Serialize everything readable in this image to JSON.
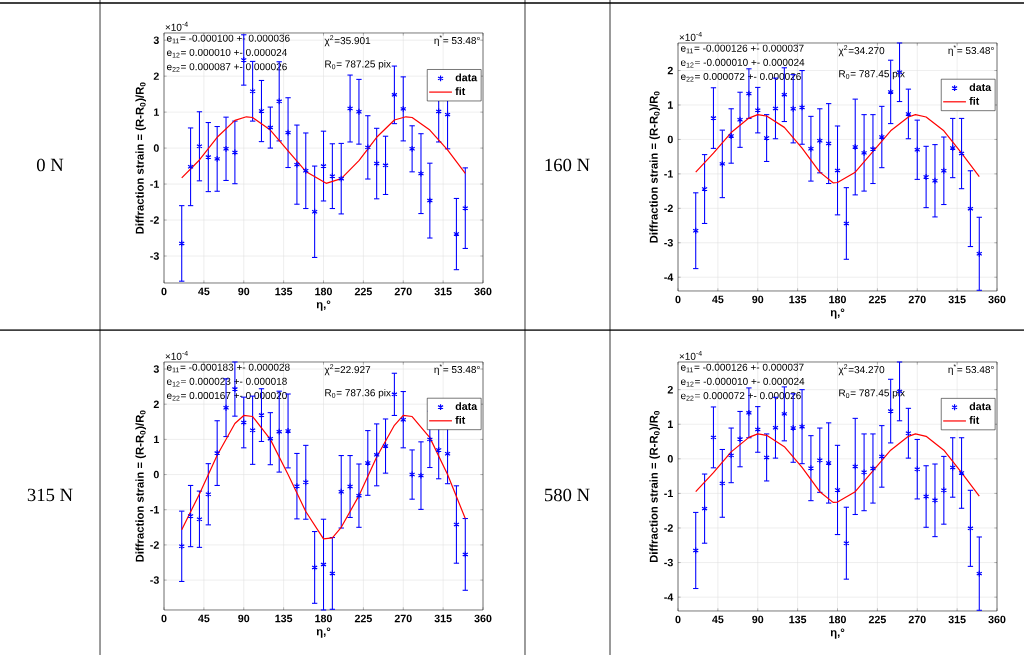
{
  "chart_data": [
    {
      "type": "scatter",
      "title": "0 N",
      "xlabel": "η,°",
      "ylabel": "Diffraction strain = (R-R$_{0}$)/R$_{0}$",
      "annotations": [
        "×10$^{-4}$",
        "e$_{11}$= -0.000100 +- 0.000036",
        "e$_{12}$= 0.000010 +- 0.000024",
        "e$_{22}$= 0.000087 +- 0.000026",
        "χ$^{2}$=35.901",
        "R$_{0}$= 787.25 pix",
        "η$^{*}$= 53.48°"
      ],
      "x": [
        20,
        30,
        40,
        50,
        60,
        70,
        80,
        90,
        100,
        110,
        120,
        130,
        140,
        150,
        160,
        170,
        180,
        190,
        200,
        210,
        220,
        230,
        240,
        250,
        260,
        270,
        280,
        290,
        300,
        310,
        320,
        330,
        340
      ],
      "series": [
        {
          "name": "data",
          "type": "scatter",
          "color": "#0000ff",
          "marker": "cross",
          "values": [
            -2.65,
            -0.52,
            0.05,
            -0.25,
            -0.3,
            -0.02,
            -0.12,
            2.45,
            1.58,
            1.03,
            0.57,
            1.3,
            0.43,
            -0.46,
            -0.63,
            -1.77,
            -0.5,
            -0.78,
            -0.85,
            1.1,
            1.01,
            0.02,
            -0.43,
            -0.48,
            1.48,
            1.09,
            -0.02,
            -0.71,
            -1.46,
            1.02,
            0.93,
            -2.39,
            -1.67
          ],
          "errors": [
            1.05,
            1.08,
            0.96,
            0.96,
            0.9,
            0.88,
            0.87,
            0.7,
            0.83,
            0.85,
            0.57,
            1.1,
            0.97,
            1.1,
            1.05,
            1.27,
            0.97,
            0.9,
            0.98,
            0.93,
            0.9,
            0.88,
            0.98,
            0.81,
            0.8,
            0.89,
            0.64,
            1.11,
            1.04,
            0.85,
            0.95,
            0.99,
            1.12
          ]
        },
        {
          "name": "fit",
          "type": "line",
          "color": "#ff0000",
          "line_style": "solid",
          "marker": "none",
          "x": [
            20,
            40,
            60,
            80,
            93,
            100,
            120,
            140,
            160,
            183,
            200,
            220,
            240,
            260,
            273,
            280,
            300,
            320,
            340
          ],
          "values": [
            -0.83,
            -0.33,
            0.3,
            0.77,
            0.87,
            0.85,
            0.5,
            -0.08,
            -0.65,
            -0.98,
            -0.85,
            -0.35,
            0.3,
            0.78,
            0.87,
            0.85,
            0.5,
            -0.05,
            -0.7
          ]
        }
      ],
      "xlim": [
        0,
        360
      ],
      "xticks": [
        0,
        45,
        90,
        135,
        180,
        225,
        270,
        315,
        360
      ],
      "ylim": [
        -3.75,
        3.2
      ],
      "yticks": [
        -3,
        -2,
        -1,
        0,
        1,
        2,
        3
      ],
      "grid": true,
      "legend": "top right"
    },
    {
      "type": "scatter",
      "title": "160 N",
      "xlabel": "η,°",
      "ylabel": "Diffraction strain = (R-R$_{0}$)/R$_{0}$",
      "annotations": [
        "×10$^{-4}$",
        "e$_{11}$= -0.000126 +- 0.000037",
        "e$_{12}$= -0.000010 +- 0.000024",
        "e$_{22}$= 0.000072 +- 0.000026",
        "χ$^{2}$=34.270",
        "R$_{0}$= 787.45 pix",
        "η$^{*}$= 53.48°"
      ],
      "x": [
        20,
        30,
        40,
        50,
        60,
        70,
        80,
        90,
        100,
        110,
        120,
        130,
        140,
        150,
        160,
        170,
        180,
        190,
        200,
        210,
        220,
        230,
        240,
        250,
        260,
        270,
        280,
        290,
        300,
        310,
        320,
        330,
        340
      ],
      "series": [
        {
          "name": "data",
          "type": "scatter",
          "color": "#0000ff",
          "marker": "cross",
          "values": [
            -2.65,
            -1.44,
            0.62,
            -0.71,
            0.1,
            0.57,
            1.33,
            0.85,
            0.04,
            0.9,
            1.3,
            0.89,
            0.93,
            -0.27,
            -0.04,
            -0.12,
            -0.9,
            -2.44,
            -0.22,
            -0.39,
            -0.28,
            0.07,
            1.38,
            1.95,
            0.74,
            -0.3,
            -1.09,
            -1.2,
            -0.91,
            -0.25,
            -0.41,
            -2.01,
            -3.32
          ],
          "errors": [
            1.1,
            1.0,
            0.88,
            0.98,
            0.79,
            0.8,
            0.72,
            0.66,
            0.68,
            0.88,
            0.78,
            0.99,
            1.07,
            0.94,
            0.93,
            1.16,
            1.29,
            1.04,
            1.39,
            1.11,
            1.0,
            0.89,
            0.92,
            0.85,
            0.72,
            0.86,
            0.89,
            1.05,
            0.98,
            0.86,
            1.02,
            1.1,
            1.06
          ]
        },
        {
          "name": "fit",
          "type": "line",
          "color": "#ff0000",
          "line_style": "solid",
          "marker": "none",
          "x": [
            20,
            40,
            60,
            80,
            90,
            100,
            120,
            140,
            160,
            175,
            180,
            200,
            220,
            240,
            260,
            268,
            280,
            300,
            320,
            340
          ],
          "values": [
            -0.95,
            -0.4,
            0.2,
            0.62,
            0.72,
            0.68,
            0.35,
            -0.25,
            -0.95,
            -1.26,
            -1.25,
            -0.95,
            -0.35,
            0.25,
            0.65,
            0.72,
            0.65,
            0.25,
            -0.4,
            -1.08
          ]
        }
      ],
      "xlim": [
        0,
        360
      ],
      "xticks": [
        0,
        45,
        90,
        135,
        180,
        225,
        270,
        315,
        360
      ],
      "ylim": [
        -4.4,
        2.8
      ],
      "yticks": [
        -4,
        -3,
        -2,
        -1,
        0,
        1,
        2
      ],
      "grid": true,
      "legend": "top right"
    },
    {
      "type": "scatter",
      "title": "315 N",
      "xlabel": "η,°",
      "ylabel": "Diffraction strain = (R-R$_{0}$)/R$_{0}$",
      "annotations": [
        "×10$^{-4}$",
        "e$_{11}$= -0.000183 +- 0.000028",
        "e$_{12}$= 0.000023 +- 0.000018",
        "e$_{22}$= 0.000167 +- 0.000020",
        "χ$^{2}$=22.927",
        "R$_{0}$= 787.36 pix",
        "η$^{*}$= 53.48°"
      ],
      "x": [
        20,
        30,
        40,
        50,
        60,
        70,
        80,
        90,
        100,
        110,
        120,
        130,
        140,
        150,
        160,
        170,
        180,
        190,
        200,
        210,
        220,
        230,
        240,
        250,
        260,
        270,
        280,
        290,
        300,
        310,
        320,
        330,
        340
      ],
      "series": [
        {
          "name": "data",
          "type": "scatter",
          "color": "#0000ff",
          "marker": "cross",
          "values": [
            -2.04,
            -1.18,
            -1.27,
            -0.56,
            0.61,
            1.9,
            2.43,
            1.48,
            1.26,
            1.69,
            1.02,
            1.22,
            1.24,
            -0.33,
            -0.22,
            -2.64,
            -2.56,
            -2.81,
            -0.49,
            -0.34,
            -0.6,
            0.33,
            0.56,
            0.81,
            2.28,
            1.56,
            0.0,
            -0.03,
            1.0,
            0.7,
            0.59,
            -1.42,
            -2.27
          ],
          "errors": [
            1.0,
            0.87,
            0.8,
            0.87,
            0.92,
            0.82,
            0.77,
            0.72,
            0.97,
            0.75,
            0.74,
            1.15,
            1.05,
            0.93,
            1.05,
            1.02,
            1.29,
            1.02,
            1.03,
            0.88,
            0.9,
            0.92,
            0.88,
            0.77,
            0.6,
            0.8,
            0.7,
            0.96,
            0.8,
            0.82,
            0.85,
            1.1,
            1.02
          ]
        },
        {
          "name": "fit",
          "type": "line",
          "color": "#ff0000",
          "line_style": "solid",
          "marker": "none",
          "x": [
            20,
            40,
            60,
            80,
            90,
            100,
            120,
            140,
            160,
            180,
            190,
            200,
            220,
            240,
            260,
            270,
            280,
            300,
            320,
            340
          ],
          "values": [
            -1.57,
            -0.55,
            0.55,
            1.45,
            1.68,
            1.65,
            1.0,
            0.0,
            -1.05,
            -1.83,
            -1.8,
            -1.5,
            -0.6,
            0.5,
            1.4,
            1.68,
            1.65,
            1.05,
            0.0,
            -1.25
          ]
        }
      ],
      "xlim": [
        0,
        360
      ],
      "xticks": [
        0,
        45,
        90,
        135,
        180,
        225,
        270,
        315,
        360
      ],
      "ylim": [
        -3.85,
        3.2
      ],
      "yticks": [
        -3,
        -2,
        -1,
        0,
        1,
        2,
        3
      ],
      "grid": true,
      "legend": "top right"
    },
    {
      "type": "scatter",
      "title": "580 N",
      "xlabel": "η,°",
      "ylabel": "Diffraction strain = (R-R$_{0}$)/R$_{0}$",
      "annotations": [
        "×10$^{-4}$",
        "e$_{11}$= -0.000126 +- 0.000037",
        "e$_{12}$= -0.000010 +- 0.000024",
        "e$_{22}$= 0.000072 +- 0.000026",
        "χ$^{2}$=34.270",
        "R$_{0}$= 787.45 pix",
        "η$^{*}$= 53.48°"
      ],
      "x": [
        20,
        30,
        40,
        50,
        60,
        70,
        80,
        90,
        100,
        110,
        120,
        130,
        140,
        150,
        160,
        170,
        180,
        190,
        200,
        210,
        220,
        230,
        240,
        250,
        260,
        270,
        280,
        290,
        300,
        310,
        320,
        330,
        340
      ],
      "series": [
        {
          "name": "data",
          "type": "scatter",
          "color": "#0000ff",
          "marker": "cross",
          "values": [
            -2.65,
            -1.44,
            0.62,
            -0.71,
            0.1,
            0.57,
            1.33,
            0.85,
            0.04,
            0.9,
            1.3,
            0.89,
            0.93,
            -0.27,
            -0.04,
            -0.12,
            -0.9,
            -2.44,
            -0.22,
            -0.39,
            -0.28,
            0.07,
            1.38,
            1.95,
            0.74,
            -0.3,
            -1.09,
            -1.2,
            -0.91,
            -0.25,
            -0.41,
            -2.01,
            -3.32
          ],
          "errors": [
            1.1,
            1.0,
            0.88,
            0.98,
            0.79,
            0.8,
            0.72,
            0.66,
            0.68,
            0.88,
            0.78,
            0.99,
            1.07,
            0.94,
            0.93,
            1.16,
            1.29,
            1.04,
            1.39,
            1.11,
            1.0,
            0.89,
            0.92,
            0.85,
            0.72,
            0.86,
            0.89,
            1.05,
            0.98,
            0.86,
            1.02,
            1.1,
            1.06
          ]
        },
        {
          "name": "fit",
          "type": "line",
          "color": "#ff0000",
          "line_style": "solid",
          "marker": "none",
          "x": [
            20,
            40,
            60,
            80,
            90,
            100,
            120,
            140,
            160,
            175,
            180,
            200,
            220,
            240,
            260,
            268,
            280,
            300,
            320,
            340
          ],
          "values": [
            -0.95,
            -0.4,
            0.2,
            0.62,
            0.72,
            0.68,
            0.35,
            -0.25,
            -0.95,
            -1.26,
            -1.25,
            -0.95,
            -0.35,
            0.25,
            0.65,
            0.72,
            0.65,
            0.25,
            -0.4,
            -1.08
          ]
        }
      ],
      "xlim": [
        0,
        360
      ],
      "xticks": [
        0,
        45,
        90,
        135,
        180,
        225,
        270,
        315,
        360
      ],
      "ylim": [
        -4.4,
        2.8
      ],
      "yticks": [
        -4,
        -3,
        -2,
        -1,
        0,
        1,
        2
      ],
      "grid": true,
      "legend": "top right"
    }
  ]
}
